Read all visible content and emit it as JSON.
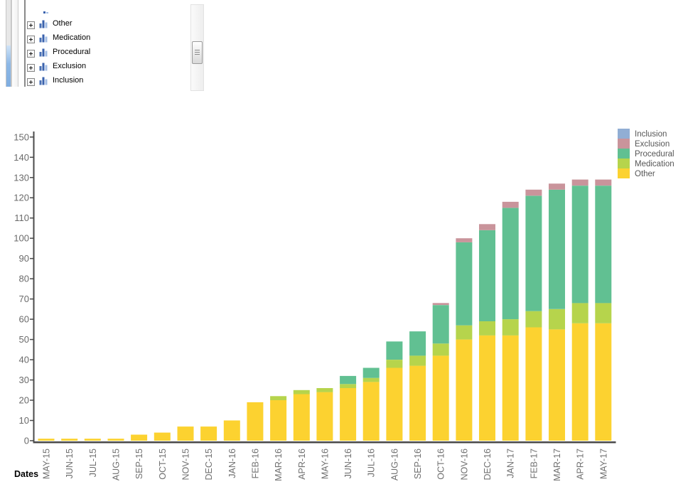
{
  "tree_panel": {
    "items": [
      {
        "label": "Other",
        "icon": "bar-chart-icon",
        "expander": "plus-expander-icon"
      },
      {
        "label": "Medication",
        "icon": "bar-chart-icon",
        "expander": "plus-expander-icon"
      },
      {
        "label": "Procedural",
        "icon": "bar-chart-icon",
        "expander": "plus-expander-icon"
      },
      {
        "label": "Exclusion",
        "icon": "bar-chart-icon",
        "expander": "plus-expander-icon"
      },
      {
        "label": "Inclusion",
        "icon": "bar-chart-icon",
        "expander": "plus-expander-icon"
      }
    ]
  },
  "chart_data": {
    "type": "bar",
    "stacked": true,
    "title": "",
    "xlabel": "Dates",
    "ylabel": "",
    "ylim": [
      0,
      150
    ],
    "ytick_step": 10,
    "yticks": [
      0,
      10,
      20,
      30,
      40,
      50,
      60,
      70,
      80,
      90,
      100,
      110,
      120,
      130,
      140,
      150
    ],
    "grid": false,
    "legend_position": "top-right",
    "legend_order": [
      "Inclusion",
      "Exclusion",
      "Procedural",
      "Medication",
      "Other"
    ],
    "categories": [
      "MAY-15",
      "JUN-15",
      "JUL-15",
      "AUG-15",
      "SEP-15",
      "OCT-15",
      "NOV-15",
      "DEC-15",
      "JAN-16",
      "FEB-16",
      "MAR-16",
      "APR-16",
      "MAY-16",
      "JUN-16",
      "JUL-16",
      "AUG-16",
      "SEP-16",
      "OCT-16",
      "NOV-16",
      "DEC-16",
      "JAN-17",
      "FEB-17",
      "MAR-17",
      "APR-17",
      "MAY-17"
    ],
    "series": [
      {
        "name": "Other",
        "color": "#fcd230",
        "values": [
          1,
          1,
          1,
          1,
          3,
          4,
          7,
          7,
          10,
          19,
          20,
          23,
          24,
          26,
          29,
          36,
          37,
          42,
          50,
          52,
          52,
          56,
          55,
          58,
          58
        ]
      },
      {
        "name": "Medication",
        "color": "#b6d44c",
        "values": [
          0,
          0,
          0,
          0,
          0,
          0,
          0,
          0,
          0,
          0,
          2,
          2,
          2,
          2,
          2,
          4,
          5,
          6,
          7,
          7,
          8,
          8,
          10,
          10,
          10
        ]
      },
      {
        "name": "Procedural",
        "color": "#61c092",
        "values": [
          0,
          0,
          0,
          0,
          0,
          0,
          0,
          0,
          0,
          0,
          0,
          0,
          0,
          4,
          5,
          9,
          12,
          19,
          41,
          45,
          55,
          57,
          59,
          58,
          58
        ]
      },
      {
        "name": "Exclusion",
        "color": "#c9949b",
        "values": [
          0,
          0,
          0,
          0,
          0,
          0,
          0,
          0,
          0,
          0,
          0,
          0,
          0,
          0,
          0,
          0,
          0,
          1,
          2,
          3,
          3,
          3,
          3,
          3,
          3
        ]
      },
      {
        "name": "Inclusion",
        "color": "#91aed4",
        "values": [
          0,
          0,
          0,
          0,
          0,
          0,
          0,
          0,
          0,
          0,
          0,
          0,
          0,
          0,
          0,
          0,
          0,
          0,
          0,
          0,
          0,
          0,
          0,
          0,
          0
        ]
      }
    ],
    "colors": {
      "axis": "#4a4a4a",
      "tick_label": "#6a6a6a",
      "legend_label": "#565656"
    }
  }
}
